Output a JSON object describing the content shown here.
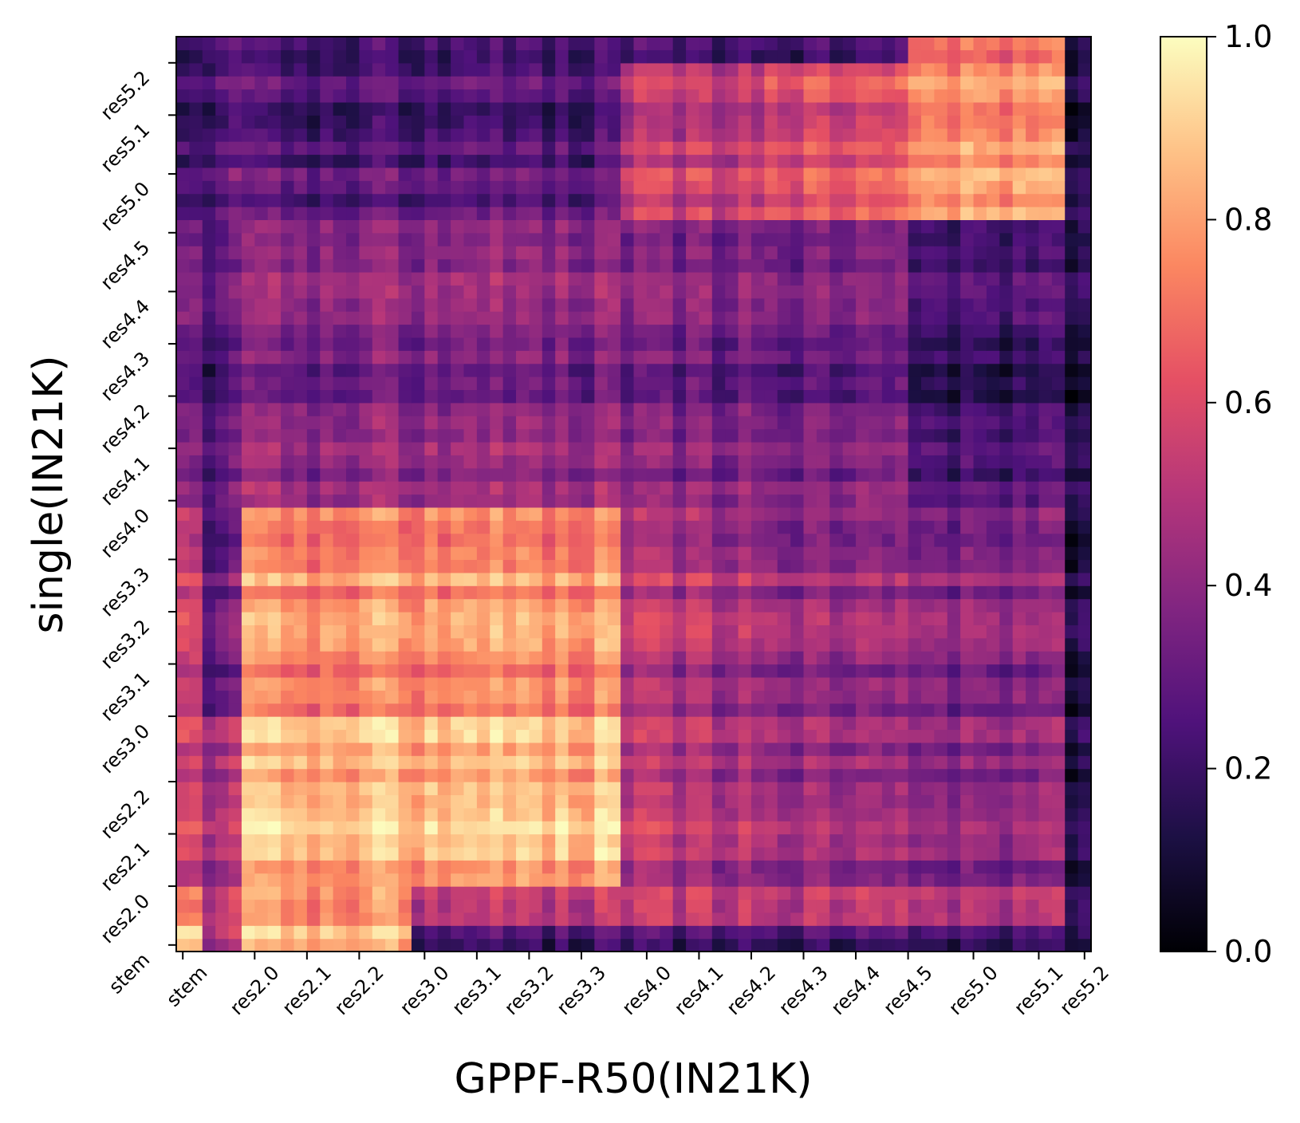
{
  "chart_data": {
    "type": "heatmap",
    "title": "",
    "xlabel": "GPPF-R50(IN21K)",
    "ylabel": "single(IN21K)",
    "x_ticks": [
      "stem",
      "res2.0",
      "res2.1",
      "res2.2",
      "res3.0",
      "res3.1",
      "res3.2",
      "res3.3",
      "res4.0",
      "res4.1",
      "res4.2",
      "res4.3",
      "res4.4",
      "res4.5",
      "res5.0",
      "res5.1",
      "res5.2"
    ],
    "y_ticks": [
      "stem",
      "res2.0",
      "res2.1",
      "res2.2",
      "res3.0",
      "res3.1",
      "res3.2",
      "res3.3",
      "res4.0",
      "res4.1",
      "res4.2",
      "res4.3",
      "res4.4",
      "res4.5",
      "res5.0",
      "res5.1",
      "res5.2"
    ],
    "colorbar": {
      "range": [
        0.0,
        1.0
      ],
      "ticks": [
        "0.0",
        "0.2",
        "0.4",
        "0.6",
        "0.8",
        "1.0"
      ],
      "colormap": "magma"
    },
    "cells_per_axis": 70,
    "note_regions": [
      {
        "rows": "res2.0-res3.3",
        "cols": "res2.0-res3.3",
        "approx_value": 0.8
      },
      {
        "rows": "res2.0-res3.3",
        "cols": "res4.0-res5.1",
        "approx_value": 0.5
      },
      {
        "rows": "res4.0-res4.5",
        "cols": "stem-res5.1",
        "approx_value": 0.4
      },
      {
        "rows": "res5.0-res5.2",
        "cols": "res4.4-res5.2",
        "approx_value": 0.75
      },
      {
        "rows": "all",
        "cols": "res5.2",
        "approx_value": 0.1
      }
    ]
  }
}
